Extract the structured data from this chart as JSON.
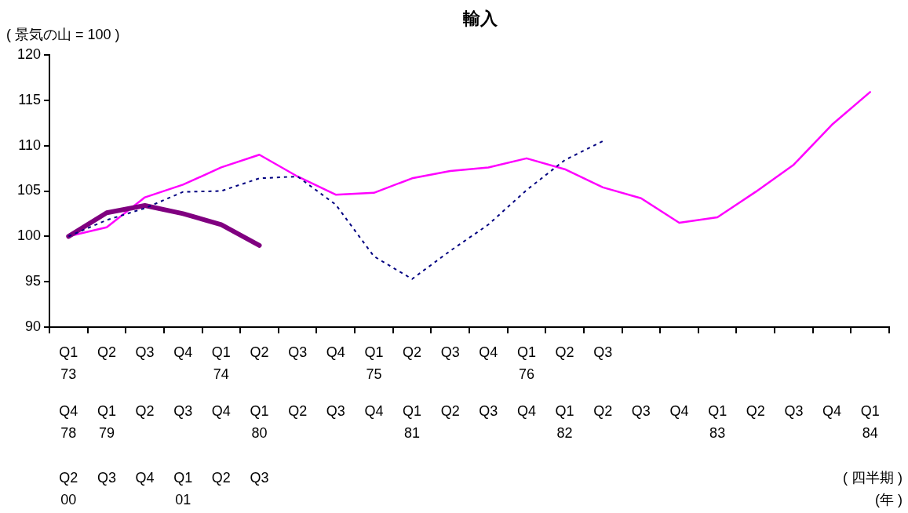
{
  "chart_data": {
    "type": "line",
    "title": "輸入",
    "ylabel": "( 景気の山 = 100 )",
    "annotations": [
      "( 四半期 )",
      "(年 )"
    ],
    "categories": [
      "Q1\n73\nQ4\n78\nQ2\n00",
      "Q2\n\nQ1\n79\nQ3\n",
      "Q3\n\nQ2\n\nQ4\n",
      "Q4\n\nQ3\n\nQ1\n01",
      "Q1\n74\nQ4\n\nQ2\n",
      "Q2\n\nQ1\n80\nQ3\n",
      "Q3\n\nQ2\n\n\n",
      "Q4\n\nQ3\n\n\n",
      "Q1\n75\nQ4\n\n\n",
      "Q2\n\nQ1\n81\n\n",
      "Q3\n\nQ2\n\n\n",
      "Q4\n\nQ3\n\n\n",
      "Q1\n76\nQ4\n\n\n",
      "Q2\n\nQ1\n82\n\n",
      "Q3\n\nQ2\n\n\n",
      "\n\nQ3\n\n\n",
      "\n\nQ4\n\n\n",
      "\n\nQ1\n83\n\n",
      "\n\nQ2\n\n\n",
      "\n\nQ3\n\n\n",
      "\n\nQ4\n\n\n",
      "\n\nQ1\n84\n\n"
    ],
    "ylim": [
      90,
      120
    ],
    "yticks": [
      90,
      95,
      100,
      105,
      110,
      115,
      120
    ],
    "grid": false,
    "legend": false,
    "marker": "none",
    "series": [
      {
        "color": "#000080",
        "line_style": "dashed",
        "values": [
          100,
          101.8,
          103.1,
          104.9,
          105.0,
          106.4,
          106.6,
          103.5,
          97.8,
          95.3,
          98.4,
          101.3,
          105.1,
          108.4,
          110.5,
          null,
          null,
          null,
          null,
          null,
          null,
          null
        ]
      },
      {
        "color": "#ff00ff",
        "line_style": "solid",
        "values": [
          100,
          101.0,
          104.3,
          105.7,
          107.6,
          109.0,
          106.6,
          104.6,
          104.8,
          106.4,
          107.2,
          107.6,
          108.6,
          107.4,
          105.4,
          104.2,
          101.5,
          102.1,
          104.9,
          107.9,
          112.3,
          115.9
        ]
      },
      {
        "color": "#800080",
        "line_style": "solid",
        "values": [
          100,
          102.6,
          103.4,
          102.5,
          101.3,
          99.0,
          null,
          null,
          null,
          null,
          null,
          null,
          null,
          null,
          null,
          null,
          null,
          null,
          null,
          null,
          null,
          null
        ]
      }
    ]
  }
}
